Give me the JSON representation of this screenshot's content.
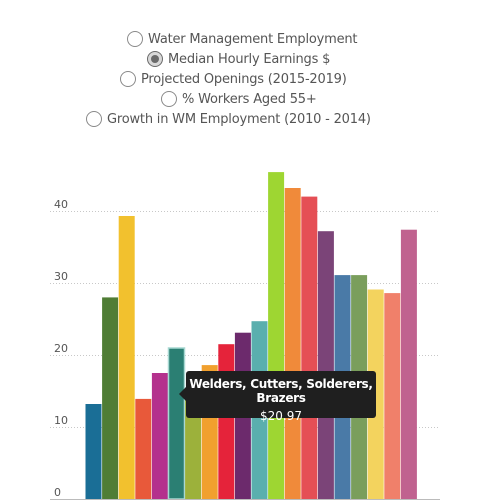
{
  "controls": {
    "options": [
      {
        "label": "Water Management Employment",
        "checked": false
      },
      {
        "label": "Median Hourly Earnings $",
        "checked": true
      },
      {
        "label": "Projected Openings (2015-2019)",
        "checked": false
      },
      {
        "label": "% Workers Aged 55+",
        "checked": false
      },
      {
        "label": "Growth in WM Employment (2010 - 2014)",
        "checked": false
      }
    ]
  },
  "tooltip": {
    "title": "Welders, Cutters, Solderers, Brazers",
    "value": "$20.97"
  },
  "chart_data": {
    "type": "bar",
    "ylim": [
      0,
      45
    ],
    "yticks": [
      0,
      10,
      20,
      30,
      40
    ],
    "grid": true,
    "highlighted_index": 5,
    "values": [
      13.2,
      28.0,
      39.3,
      13.9,
      17.5,
      20.97,
      14.5,
      18.6,
      21.5,
      23.1,
      24.7,
      45.4,
      43.2,
      42.0,
      37.2,
      31.1,
      31.1,
      29.1,
      28.6,
      37.4
    ],
    "colors": [
      "#1a6e96",
      "#4f7d35",
      "#f2c12e",
      "#e8593a",
      "#b4318d",
      "#2b7f73",
      "#9cb13b",
      "#f1a02e",
      "#e5233a",
      "#6c2a6c",
      "#5aafae",
      "#9ed632",
      "#f08a3a",
      "#e54f55",
      "#7b4478",
      "#4a7aa7",
      "#7a9e5c",
      "#f3d35e",
      "#f0806a",
      "#c0628f"
    ]
  }
}
